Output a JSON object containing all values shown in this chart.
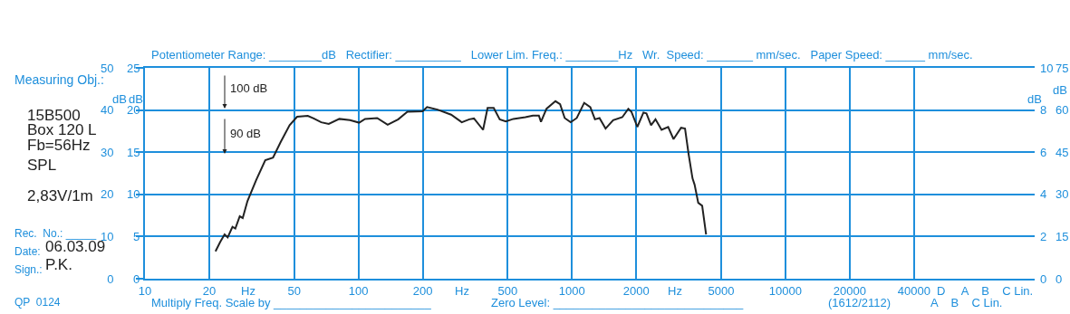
{
  "chart_data": {
    "type": "line",
    "x": [
      21.4,
      22.5,
      23.6,
      24.4,
      25.7,
      26.5,
      27.8,
      28.7,
      30.2,
      33.2,
      36.6,
      39.8,
      43.2,
      47.6,
      51.6,
      57.9,
      61.7,
      66.9,
      72.6,
      81.4,
      91.3,
      100.7,
      107.4,
      122.4,
      137,
      153.6,
      169.5,
      199.6,
      209.6,
      234.5,
      271.7,
      304.7,
      330.5,
      347.5,
      383.4,
      402.6,
      430.1,
      459,
      490,
      531.6,
      605,
      656,
      700,
      716,
      760,
      837,
      880,
      925,
      986,
      1053,
      1141,
      1219,
      1281,
      1346,
      1437,
      1559,
      1721,
      1837,
      1899,
      2024,
      2162,
      2233,
      2347,
      2462,
      2628,
      2823,
      2990,
      3245,
      3386,
      3520,
      3670,
      3754,
      3904,
      4073,
      4249
    ],
    "series": [
      {
        "color": "#222222",
        "values": [
          6.5,
          8.7,
          10.5,
          9.8,
          12.3,
          11.9,
          14.8,
          14.4,
          18.4,
          23.4,
          28.1,
          28.7,
          32.4,
          36.4,
          38.4,
          38.6,
          38.0,
          37.1,
          36.7,
          37.9,
          37.6,
          37.0,
          37.9,
          38.1,
          36.5,
          37.8,
          39.6,
          39.7,
          40.7,
          40.1,
          38.9,
          37.1,
          37.8,
          38.0,
          35.3,
          40.5,
          40.5,
          37.8,
          37.3,
          37.9,
          38.3,
          38.7,
          38.7,
          37.2,
          40.3,
          42.1,
          41.4,
          38.1,
          37.1,
          38.1,
          41.7,
          40.7,
          37.8,
          38.1,
          35.6,
          37.6,
          38.3,
          40.3,
          39.6,
          36.0,
          39.4,
          39.2,
          36.4,
          37.8,
          35.3,
          36.0,
          33.1,
          35.8,
          35.6,
          29.5,
          23.8,
          22.3,
          18.0,
          17.3,
          10.5
        ]
      }
    ],
    "log": "x",
    "xlim": [
      10,
      147000
    ],
    "xticks": [
      10,
      20,
      50,
      100,
      200,
      500,
      1000,
      2000,
      5000,
      10000,
      20000,
      40000
    ],
    "ylim": [
      0,
      50
    ],
    "yticks": [
      0,
      10,
      20,
      30,
      40,
      50
    ],
    "y3lim": [
      0,
      25
    ],
    "y3ticks": [
      0,
      5,
      10,
      15,
      20,
      25
    ],
    "y2lim": [
      0,
      10
    ],
    "y2ticks": [
      0,
      2,
      4,
      6,
      8,
      10
    ],
    "ylabel": "dB",
    "y3label": "dB",
    "y2label": "dB",
    "grid": true,
    "marker": "none",
    "line_style": "solid",
    "annotations": [
      "Potentiometer Range: ________dB   Rectifier: __________   Lower Lim. Freq.: ________Hz   Wr.  Speed: _______ mm/sec.   Paper Speed: ______ mm/sec.",
      "Measuring Obj.:",
      "15B500",
      "Box 120 L",
      "Fb=56Hz",
      "SPL",
      "2,83V/1m",
      "Rec.  No.: _____",
      "Date:",
      "06.03.09",
      "Sign.:",
      "P.K.",
      "QP  0124",
      "Multiply Freq. Scale by ________________________",
      "Zero Level: _____________________________",
      "(1612/2112)",
      "A    B    C Lin.",
      "Hz",
      "Hz",
      "Hz",
      "D     A    B    C Lin.",
      "100 dB",
      "90 dB",
      "dB",
      "75",
      "60",
      "45",
      "30",
      "15",
      "0"
    ]
  }
}
